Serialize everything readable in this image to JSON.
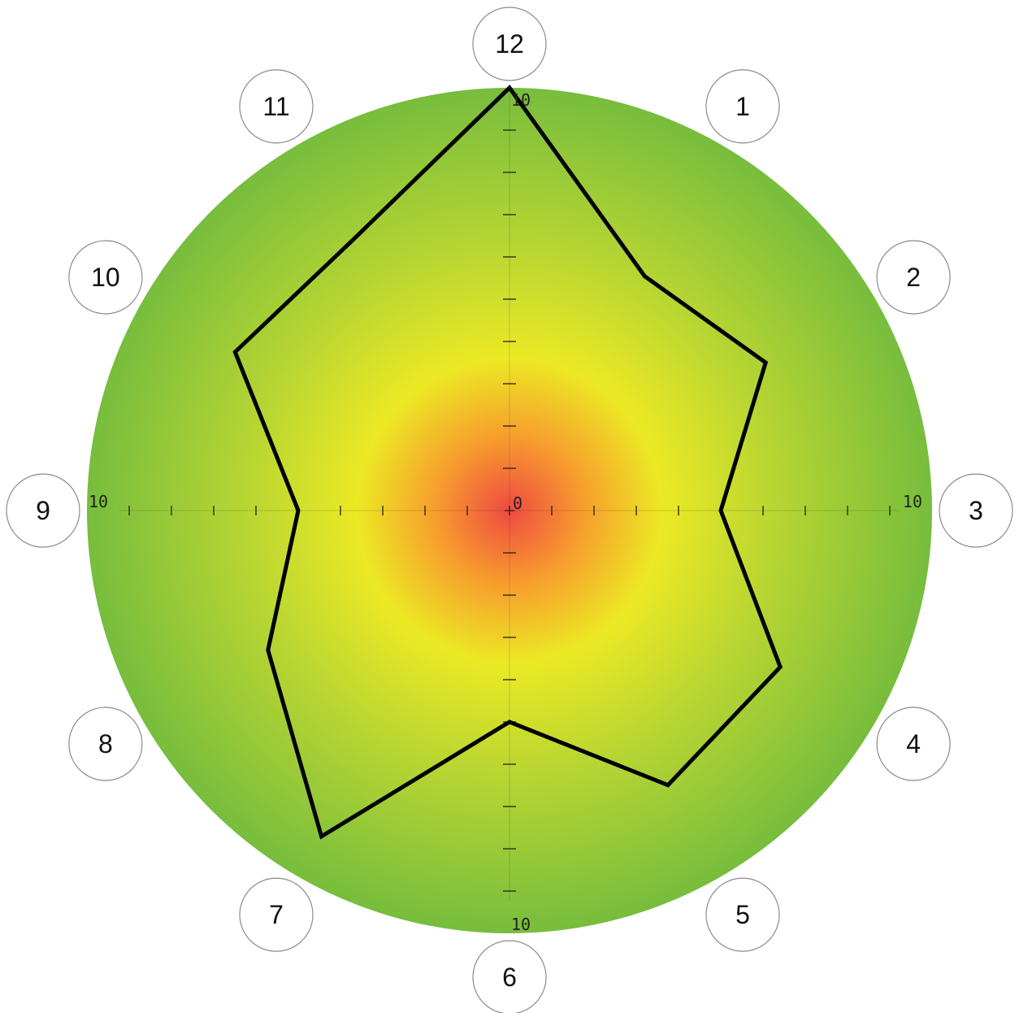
{
  "colors": {
    "center": "#ef4a42",
    "mid_orange": "#f7a02d",
    "yellow": "#ece924",
    "yellow_green": "#b9d632",
    "outer_green": "#77bd3d",
    "polygon_stroke": "#000000",
    "badge_fill": "#ffffff",
    "badge_stroke": "#8a8a8a"
  },
  "chart_data": {
    "type": "radar",
    "spoke_labels": [
      "12",
      "1",
      "2",
      "3",
      "4",
      "5",
      "6",
      "7",
      "8",
      "9",
      "10",
      "11"
    ],
    "values": [
      10,
      6.4,
      7.0,
      5.0,
      7.4,
      7.5,
      5.0,
      8.9,
      6.6,
      5.0,
      7.5,
      7.4
    ],
    "range": [
      0,
      10
    ],
    "axis_labels": {
      "center": "0",
      "top": "10",
      "right": "10",
      "bottom": "10",
      "left": "10"
    }
  }
}
